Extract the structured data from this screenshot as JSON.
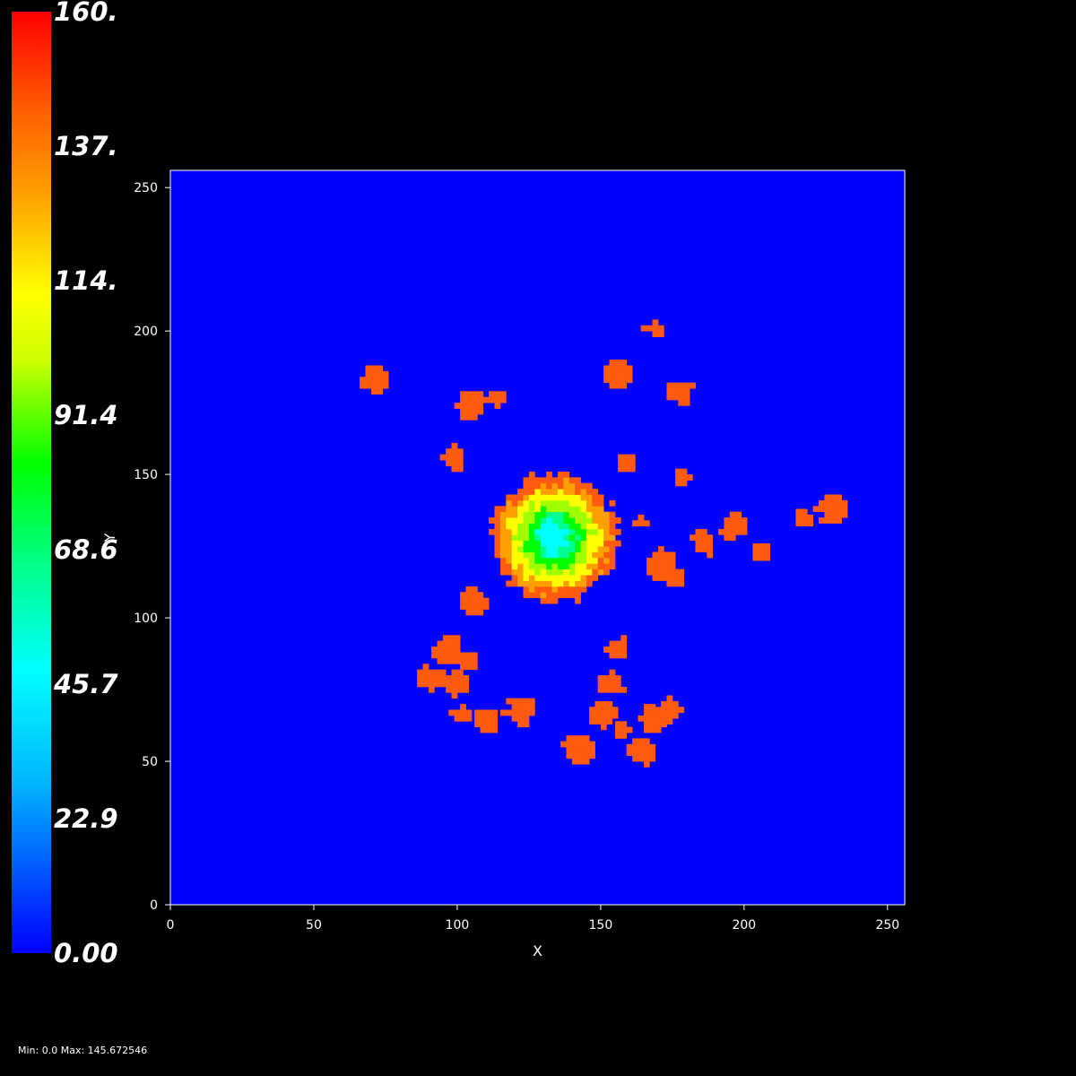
{
  "chart_data": {
    "type": "heatmap",
    "xlabel": "X",
    "ylabel": "Y",
    "xlim": [
      0,
      256
    ],
    "ylim": [
      0,
      256
    ],
    "x_ticks": [
      0,
      50,
      100,
      150,
      200,
      250
    ],
    "y_ticks": [
      0,
      50,
      100,
      150,
      200,
      250
    ],
    "background_value": 0.0,
    "colorbar": {
      "range": [
        0,
        160
      ],
      "labels": [
        "160.",
        "137.",
        "114.",
        "91.4",
        "68.6",
        "45.7",
        "22.9",
        "0.00"
      ],
      "colormap": "rainbow",
      "colors": [
        "#ff0000",
        "#ffa500",
        "#ffff00",
        "#00ff00",
        "#00ffff",
        "#0000ff"
      ]
    },
    "cluster": {
      "center": [
        133,
        127
      ],
      "bands": [
        {
          "name": "outer",
          "value": 145,
          "radius": 22,
          "color": "#ff5a10"
        },
        {
          "name": "orange",
          "value": 135,
          "radius": 19,
          "color": "#ffa000"
        },
        {
          "name": "yellow",
          "value": 118,
          "radius": 16,
          "color": "#ffff00"
        },
        {
          "name": "lime",
          "value": 105,
          "radius": 13,
          "color": "#a0ff00"
        },
        {
          "name": "green",
          "value": 92,
          "radius": 10,
          "color": "#00ff00"
        },
        {
          "name": "spring",
          "value": 68,
          "radius": 7,
          "color": "#00ff90"
        },
        {
          "name": "cyan",
          "value": 48,
          "radius": 5,
          "color": "#00ffff"
        }
      ]
    },
    "blobs": [
      {
        "x": 70,
        "y": 182,
        "value": 145
      },
      {
        "x": 103,
        "y": 173,
        "value": 145
      },
      {
        "x": 113,
        "y": 175,
        "value": 145
      },
      {
        "x": 98,
        "y": 155,
        "value": 145
      },
      {
        "x": 168,
        "y": 200,
        "value": 145
      },
      {
        "x": 155,
        "y": 184,
        "value": 145
      },
      {
        "x": 177,
        "y": 178,
        "value": 145
      },
      {
        "x": 178,
        "y": 148,
        "value": 145
      },
      {
        "x": 158,
        "y": 153,
        "value": 145
      },
      {
        "x": 163,
        "y": 132,
        "value": 145
      },
      {
        "x": 185,
        "y": 125,
        "value": 145
      },
      {
        "x": 195,
        "y": 131,
        "value": 145
      },
      {
        "x": 205,
        "y": 122,
        "value": 145
      },
      {
        "x": 220,
        "y": 134,
        "value": 145
      },
      {
        "x": 230,
        "y": 137,
        "value": 145
      },
      {
        "x": 170,
        "y": 117,
        "value": 145
      },
      {
        "x": 175,
        "y": 113,
        "value": 145
      },
      {
        "x": 105,
        "y": 105,
        "value": 145
      },
      {
        "x": 95,
        "y": 88,
        "value": 145
      },
      {
        "x": 103,
        "y": 84,
        "value": 145
      },
      {
        "x": 90,
        "y": 78,
        "value": 145
      },
      {
        "x": 100,
        "y": 76,
        "value": 145
      },
      {
        "x": 101,
        "y": 66,
        "value": 145
      },
      {
        "x": 110,
        "y": 64,
        "value": 145
      },
      {
        "x": 121,
        "y": 66,
        "value": 145
      },
      {
        "x": 155,
        "y": 88,
        "value": 145
      },
      {
        "x": 153,
        "y": 76,
        "value": 145
      },
      {
        "x": 150,
        "y": 65,
        "value": 145
      },
      {
        "x": 157,
        "y": 60,
        "value": 145
      },
      {
        "x": 167,
        "y": 64,
        "value": 145
      },
      {
        "x": 173,
        "y": 67,
        "value": 145
      },
      {
        "x": 142,
        "y": 53,
        "value": 145
      },
      {
        "x": 163,
        "y": 52,
        "value": 145
      }
    ]
  },
  "footer": {
    "stats": "Min: 0.0 Max: 145.672546"
  }
}
